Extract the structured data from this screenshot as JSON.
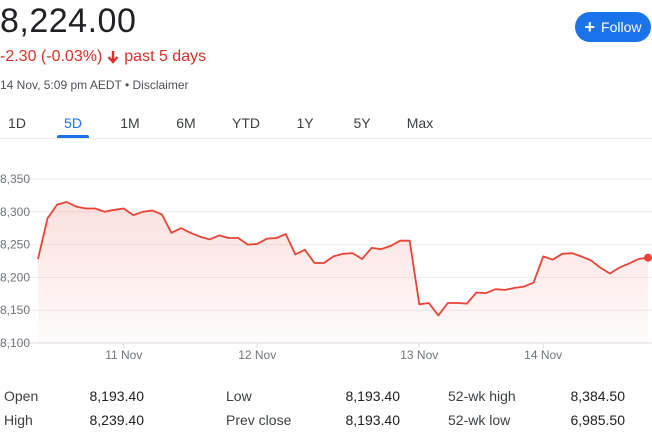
{
  "header": {
    "price": "8,224.00",
    "change": "-2.30 (-0.03%)",
    "period": "past 5 days",
    "meta": "14 Nov, 5:09 pm AEDT • Disclaimer",
    "follow_label": "Follow",
    "colors": {
      "down": "#d93025",
      "accent": "#1a73e8"
    }
  },
  "tabs": [
    {
      "label": "1D"
    },
    {
      "label": "5D",
      "active": true
    },
    {
      "label": "1M"
    },
    {
      "label": "6M"
    },
    {
      "label": "YTD"
    },
    {
      "label": "1Y"
    },
    {
      "label": "5Y"
    },
    {
      "label": "Max"
    }
  ],
  "chart_data": {
    "type": "area",
    "y_ticks": [
      "8,350",
      "8,300",
      "8,250",
      "8,200",
      "8,150",
      "8,100"
    ],
    "ylim": [
      8100,
      8350
    ],
    "x_ticks": [
      "11 Nov",
      "12 Nov",
      "13 Nov",
      "14 Nov"
    ],
    "line_color": "#ea4335",
    "series": [
      {
        "values": [
          8228,
          8290,
          8311,
          8315,
          8308,
          8305,
          8305,
          8300,
          8303,
          8305,
          8295,
          8300,
          8302,
          8296,
          8268,
          8275,
          8268,
          8262,
          8258,
          8264,
          8260,
          8260,
          8250,
          8251,
          8259,
          8260,
          8266,
          8235,
          8242,
          8222,
          8222,
          8232,
          8236,
          8237,
          8228,
          8245,
          8243,
          8248,
          8256,
          8256,
          8159,
          8161,
          8142,
          8161,
          8161,
          8160,
          8177,
          8176,
          8182,
          8181,
          8184,
          8186,
          8192,
          8232,
          8227,
          8236,
          8237,
          8232,
          8226,
          8215,
          8206,
          8215,
          8221,
          8228,
          8230
        ]
      }
    ]
  },
  "stats": [
    {
      "label": "Open",
      "value": "8,193.40"
    },
    {
      "label": "High",
      "value": "8,239.40"
    },
    {
      "label": "Low",
      "value": "8,193.40"
    },
    {
      "label": "Prev close",
      "value": "8,193.40"
    },
    {
      "label": "52-wk high",
      "value": "8,384.50"
    },
    {
      "label": "52-wk low",
      "value": "6,985.50"
    }
  ]
}
